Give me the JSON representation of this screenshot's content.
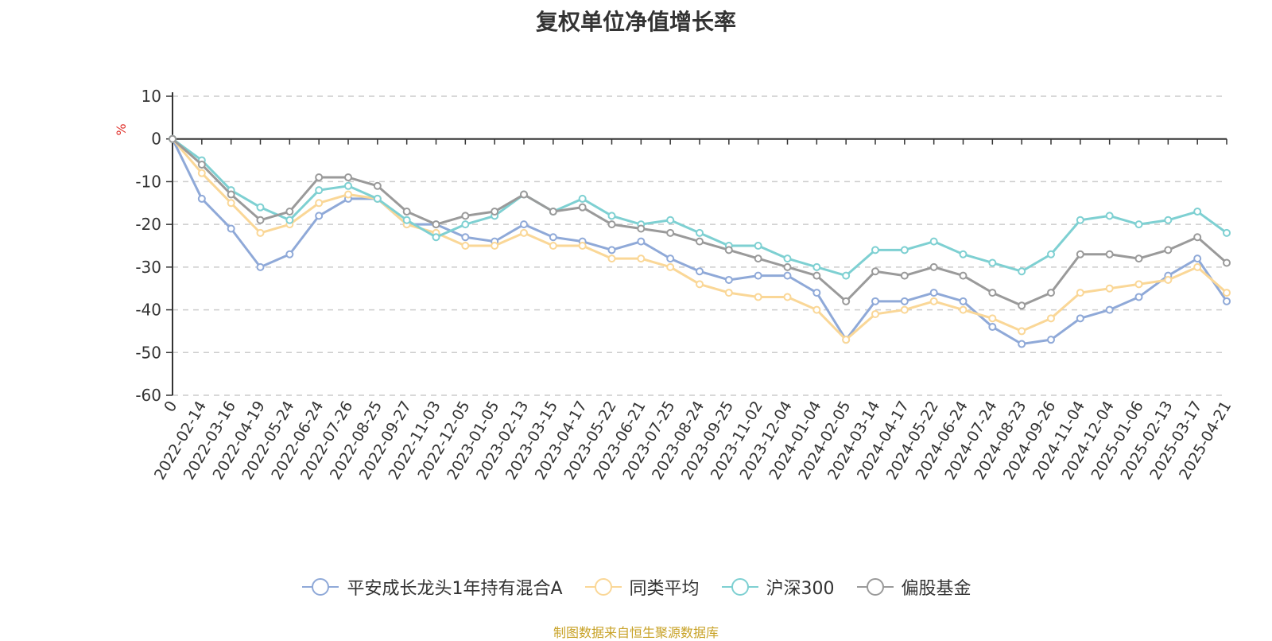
{
  "chart_data": {
    "type": "line",
    "title": "复权单位净值增长率",
    "ylabel": "%",
    "ylim": [
      -60,
      10
    ],
    "yticks": [
      10,
      0,
      -10,
      -20,
      -30,
      -40,
      -50,
      -60
    ],
    "grid": true,
    "legend_position": "bottom",
    "x": [
      "0",
      "2022-02-14",
      "2022-03-16",
      "2022-04-19",
      "2022-05-24",
      "2022-06-24",
      "2022-07-26",
      "2022-08-25",
      "2022-09-27",
      "2022-11-03",
      "2022-12-05",
      "2023-01-05",
      "2023-02-13",
      "2023-03-15",
      "2023-04-17",
      "2023-05-22",
      "2023-06-21",
      "2023-07-25",
      "2023-08-24",
      "2023-09-25",
      "2023-11-02",
      "2023-12-04",
      "2024-01-04",
      "2024-02-05",
      "2024-03-14",
      "2024-04-17",
      "2024-05-22",
      "2024-06-24",
      "2024-07-24",
      "2024-08-23",
      "2024-09-26",
      "2024-11-04",
      "2024-12-04",
      "2025-01-06",
      "2025-02-13",
      "2025-03-17",
      "2025-04-21"
    ],
    "series": [
      {
        "name": "平安成长龙头1年持有混合A",
        "color": "#8fa9d8",
        "values": [
          0,
          -14,
          -21,
          -30,
          -27,
          -18,
          -14,
          -14,
          -20,
          -20,
          -23,
          -24,
          -20,
          -23,
          -24,
          -26,
          -24,
          -28,
          -31,
          -33,
          -32,
          -32,
          -36,
          -47,
          -38,
          -38,
          -36,
          -38,
          -44,
          -48,
          -47,
          -42,
          -40,
          -37,
          -32,
          -28,
          -38
        ]
      },
      {
        "name": "同类平均",
        "color": "#fad797",
        "values": [
          0,
          -8,
          -15,
          -22,
          -20,
          -15,
          -13,
          -14,
          -20,
          -22,
          -25,
          -25,
          -22,
          -25,
          -25,
          -28,
          -28,
          -30,
          -34,
          -36,
          -37,
          -37,
          -40,
          -47,
          -41,
          -40,
          -38,
          -40,
          -42,
          -45,
          -42,
          -36,
          -35,
          -34,
          -33,
          -30,
          -36
        ]
      },
      {
        "name": "沪深300",
        "color": "#7ed0d2",
        "values": [
          0,
          -5,
          -12,
          -16,
          -19,
          -12,
          -11,
          -14,
          -19,
          -23,
          -20,
          -18,
          -13,
          -17,
          -14,
          -18,
          -20,
          -19,
          -22,
          -25,
          -25,
          -28,
          -30,
          -32,
          -26,
          -26,
          -24,
          -27,
          -29,
          -31,
          -27,
          -19,
          -18,
          -20,
          -19,
          -17,
          -22
        ]
      },
      {
        "name": "偏股基金",
        "color": "#9a9a9a",
        "values": [
          0,
          -6,
          -13,
          -19,
          -17,
          -9,
          -9,
          -11,
          -17,
          -20,
          -18,
          -17,
          -13,
          -17,
          -16,
          -20,
          -21,
          -22,
          -24,
          -26,
          -28,
          -30,
          -32,
          -38,
          -31,
          -32,
          -30,
          -32,
          -36,
          -39,
          -36,
          -27,
          -27,
          -28,
          -26,
          -23,
          -29
        ]
      }
    ]
  },
  "source_text": "制图数据来自恒生聚源数据库"
}
